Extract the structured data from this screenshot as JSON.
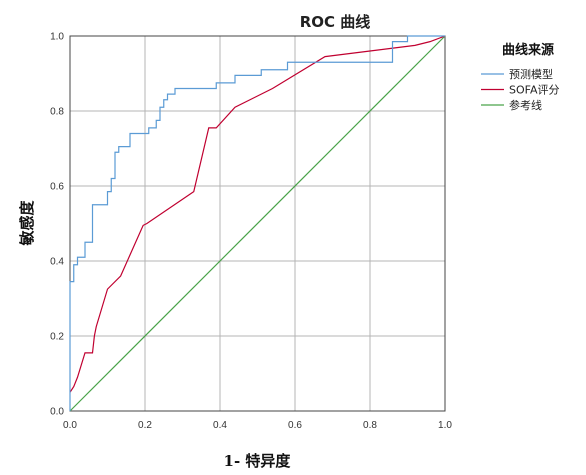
{
  "chart_data": {
    "type": "line",
    "title": "ROC 曲线",
    "xlabel": "1- 特异度",
    "ylabel": "敏感度",
    "xlim": [
      0,
      1
    ],
    "ylim": [
      0,
      1
    ],
    "xticks": [
      "0.0",
      "0.2",
      "0.4",
      "0.6",
      "0.8",
      "1.0"
    ],
    "yticks": [
      "0.0",
      "0.2",
      "0.4",
      "0.6",
      "0.8",
      "1.0"
    ],
    "grid": true,
    "legend": {
      "title": "曲线来源",
      "placement": "right"
    },
    "series": [
      {
        "name": "预测模型",
        "color": "#5b9bd5",
        "step": true,
        "points": [
          [
            0.0,
            0.0
          ],
          [
            0.0,
            0.345
          ],
          [
            0.01,
            0.345
          ],
          [
            0.01,
            0.39
          ],
          [
            0.02,
            0.39
          ],
          [
            0.02,
            0.41
          ],
          [
            0.04,
            0.41
          ],
          [
            0.04,
            0.45
          ],
          [
            0.06,
            0.45
          ],
          [
            0.06,
            0.55
          ],
          [
            0.1,
            0.55
          ],
          [
            0.1,
            0.585
          ],
          [
            0.11,
            0.585
          ],
          [
            0.11,
            0.62
          ],
          [
            0.12,
            0.62
          ],
          [
            0.12,
            0.69
          ],
          [
            0.13,
            0.69
          ],
          [
            0.13,
            0.705
          ],
          [
            0.16,
            0.705
          ],
          [
            0.16,
            0.74
          ],
          [
            0.21,
            0.74
          ],
          [
            0.21,
            0.755
          ],
          [
            0.23,
            0.755
          ],
          [
            0.23,
            0.775
          ],
          [
            0.24,
            0.775
          ],
          [
            0.24,
            0.81
          ],
          [
            0.25,
            0.81
          ],
          [
            0.25,
            0.83
          ],
          [
            0.26,
            0.83
          ],
          [
            0.26,
            0.845
          ],
          [
            0.28,
            0.845
          ],
          [
            0.28,
            0.86
          ],
          [
            0.39,
            0.86
          ],
          [
            0.39,
            0.875
          ],
          [
            0.44,
            0.875
          ],
          [
            0.44,
            0.895
          ],
          [
            0.51,
            0.895
          ],
          [
            0.51,
            0.91
          ],
          [
            0.58,
            0.91
          ],
          [
            0.58,
            0.93
          ],
          [
            0.86,
            0.93
          ],
          [
            0.86,
            0.985
          ],
          [
            0.9,
            0.985
          ],
          [
            0.9,
            1.0
          ],
          [
            1.0,
            1.0
          ]
        ]
      },
      {
        "name": "SOFA评分",
        "color": "#c00030",
        "step": false,
        "points": [
          [
            0.0,
            0.05
          ],
          [
            0.01,
            0.065
          ],
          [
            0.02,
            0.09
          ],
          [
            0.04,
            0.155
          ],
          [
            0.06,
            0.155
          ],
          [
            0.065,
            0.2
          ],
          [
            0.07,
            0.225
          ],
          [
            0.1,
            0.325
          ],
          [
            0.135,
            0.36
          ],
          [
            0.195,
            0.495
          ],
          [
            0.205,
            0.5
          ],
          [
            0.33,
            0.585
          ],
          [
            0.37,
            0.755
          ],
          [
            0.39,
            0.755
          ],
          [
            0.44,
            0.81
          ],
          [
            0.54,
            0.86
          ],
          [
            0.68,
            0.945
          ],
          [
            0.8,
            0.96
          ],
          [
            0.92,
            0.975
          ],
          [
            0.96,
            0.985
          ],
          [
            1.0,
            1.0
          ]
        ]
      },
      {
        "name": "参考线",
        "color": "#4aa34a",
        "step": false,
        "points": [
          [
            0.0,
            0.0
          ],
          [
            1.0,
            1.0
          ]
        ]
      }
    ]
  }
}
